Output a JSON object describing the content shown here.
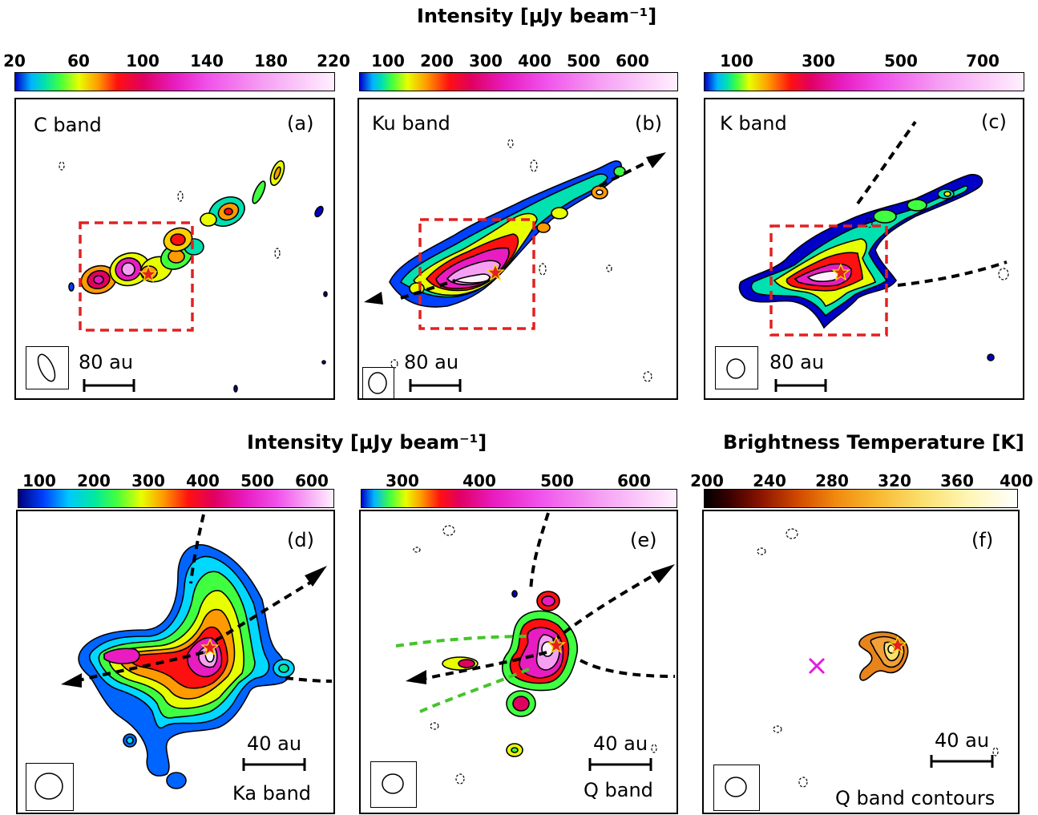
{
  "headings": {
    "top": "Intensity [μJy beam⁻¹]",
    "middle_left": "Intensity [μJy beam⁻¹]",
    "middle_right": "Brightness Temperature [K]"
  },
  "colorbars": [
    {
      "panel": "a",
      "ticks": [
        "20",
        "60",
        "100",
        "140",
        "180",
        "220"
      ],
      "range": [
        20,
        220
      ]
    },
    {
      "panel": "b",
      "ticks": [
        "100",
        "200",
        "300",
        "400",
        "500",
        "600"
      ],
      "range": [
        40,
        690
      ]
    },
    {
      "panel": "c",
      "ticks": [
        "100",
        "300",
        "500",
        "700"
      ],
      "range": [
        20,
        800
      ]
    },
    {
      "panel": "d",
      "ticks": [
        "100",
        "200",
        "300",
        "400",
        "500",
        "600"
      ],
      "range": [
        80,
        660
      ]
    },
    {
      "panel": "e",
      "ticks": [
        "300",
        "400",
        "500",
        "600"
      ],
      "range": [
        240,
        650
      ]
    },
    {
      "panel": "f",
      "ticks": [
        "200",
        "240",
        "280",
        "320",
        "360",
        "400"
      ],
      "range": [
        200,
        400
      ]
    }
  ],
  "panels": [
    {
      "id": "(a)",
      "band": "C band",
      "scale": "80 au"
    },
    {
      "id": "(b)",
      "band": "Ku band",
      "scale": "80 au"
    },
    {
      "id": "(c)",
      "band": "K band",
      "scale": "80 au"
    },
    {
      "id": "(d)",
      "band": "Ka band",
      "scale": "40 au"
    },
    {
      "id": "(e)",
      "band": "Q band",
      "scale": "40 au"
    },
    {
      "id": "(f)",
      "band": "Q band contours",
      "scale": "40 au"
    }
  ],
  "colors": {
    "star_fill": "#e32020",
    "star_edge": "#f7e000",
    "box_dash": "#e32020",
    "cone_lines": "#44c42a",
    "cross_marker": "#e020e0",
    "outflow_arrows": "#000000"
  }
}
